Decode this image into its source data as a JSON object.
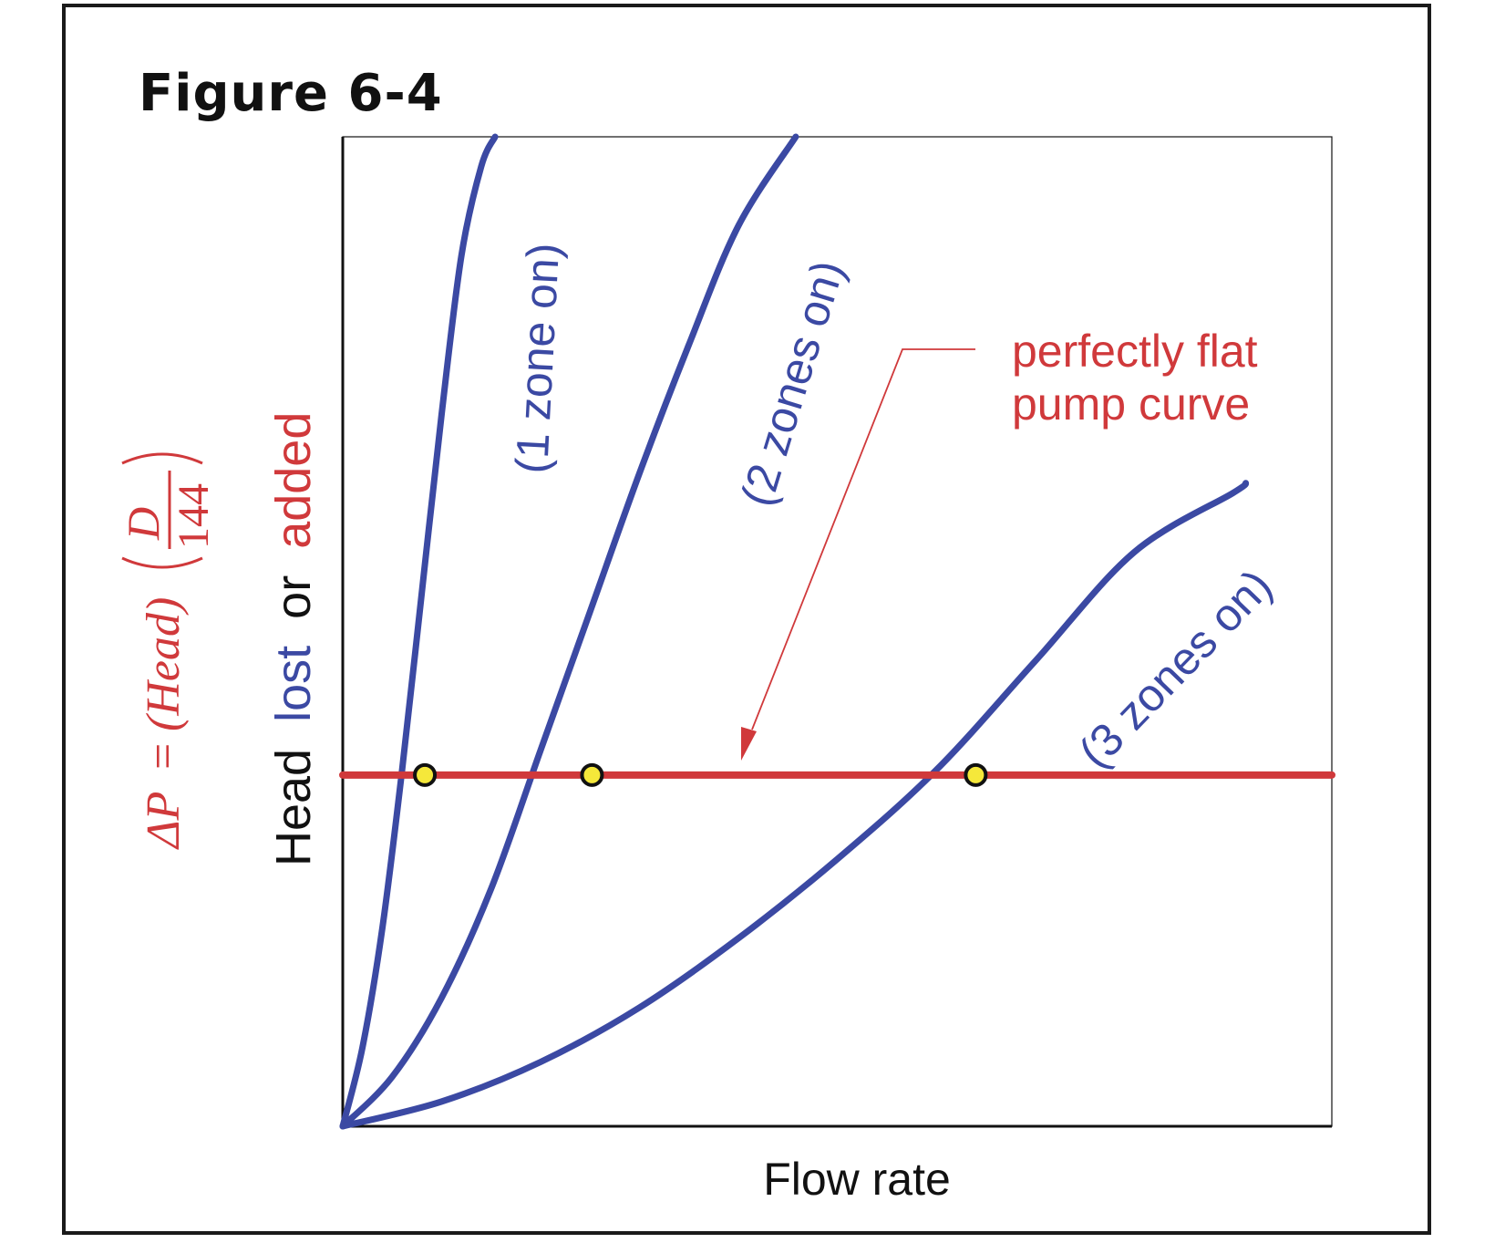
{
  "figure_label": "Figure 6-4",
  "colors": {
    "curve": "#3b49a3",
    "pump": "#d0393b",
    "point": "#f5e83a",
    "text": "#111111"
  },
  "chart_data": {
    "type": "line",
    "title": "Figure 6-4",
    "xlabel": "Flow rate",
    "ylabel": {
      "head": "Head",
      "lost": "lost",
      "or": "or",
      "added": "added",
      "formula": {
        "delta_p": "ΔP",
        "equals": "=",
        "head_term": "(Head)",
        "numerator": "D",
        "denominator": "144"
      }
    },
    "xlim": [
      0,
      100
    ],
    "ylim": [
      0,
      100
    ],
    "series": [
      {
        "name": "(1 zone on)",
        "type": "system-curve",
        "x": [
          0,
          2,
          4,
          6,
          8,
          10,
          12,
          14,
          15.4
        ],
        "y": [
          0,
          8,
          20,
          36,
          54,
          72,
          88,
          97,
          100
        ]
      },
      {
        "name": "(2 zones on)",
        "type": "system-curve",
        "x": [
          0,
          5,
          10,
          15,
          20,
          25,
          30,
          35,
          40,
          45.8
        ],
        "y": [
          0,
          5,
          13,
          24,
          38,
          52,
          66,
          79,
          91,
          100
        ]
      },
      {
        "name": "(3 zones on)",
        "type": "system-curve",
        "x": [
          0,
          10,
          20,
          30,
          40,
          50,
          60,
          70,
          80,
          90,
          91.3
        ],
        "y": [
          0,
          2.5,
          6.5,
          12,
          19,
          27,
          36,
          47,
          58,
          64,
          65
        ]
      },
      {
        "name": "perfectly flat pump curve",
        "type": "pump-curve",
        "x": [
          0,
          100
        ],
        "y": [
          35.5,
          35.5
        ]
      }
    ],
    "operating_points": [
      {
        "series": "(1 zone on)",
        "x": 8.3,
        "y": 35.5
      },
      {
        "series": "(2 zones on)",
        "x": 25.2,
        "y": 35.5
      },
      {
        "series": "(3 zones on)",
        "x": 64.0,
        "y": 35.5
      }
    ],
    "annotations": [
      {
        "text": "perfectly flat",
        "target": "perfectly flat pump curve"
      },
      {
        "text": "pump curve",
        "target": "perfectly flat pump curve"
      }
    ],
    "grid": false,
    "ticks": false
  }
}
